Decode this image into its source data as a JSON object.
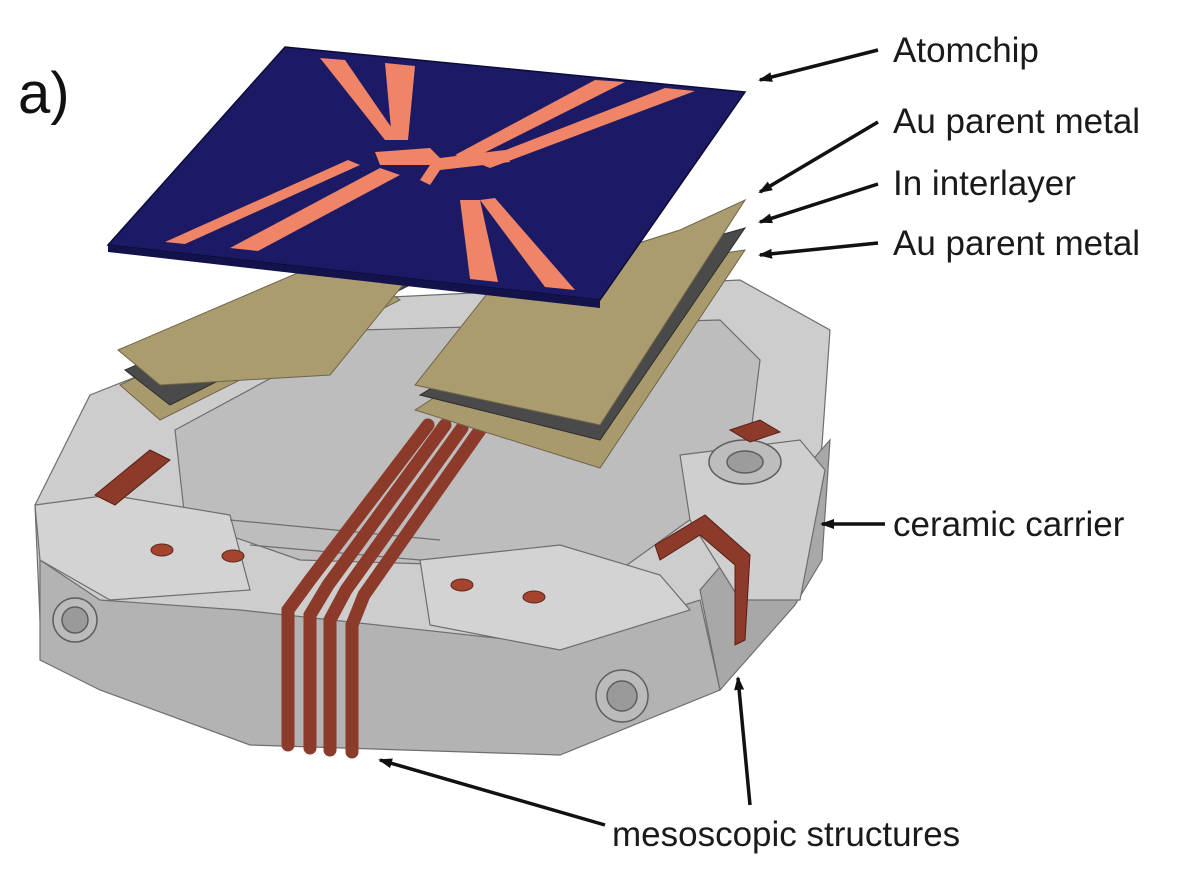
{
  "panel_label": "a)",
  "labels": {
    "atomchip": "Atomchip",
    "au_parent_metal_top": "Au parent metal",
    "in_interlayer": "In interlayer",
    "au_parent_metal_bottom": "Au parent metal",
    "ceramic_carrier": "ceramic carrier",
    "mesoscopic_structures": "mesoscopic structures"
  },
  "colors": {
    "chip": "#1c1a64",
    "chip_wire": "#f08466",
    "au_layer": "#a99a6e",
    "in_layer": "#4a4a4a",
    "ceramic": "#c6c6c6",
    "ceramic_dark": "#a9a9a9",
    "copper": "#8c3a2a"
  }
}
